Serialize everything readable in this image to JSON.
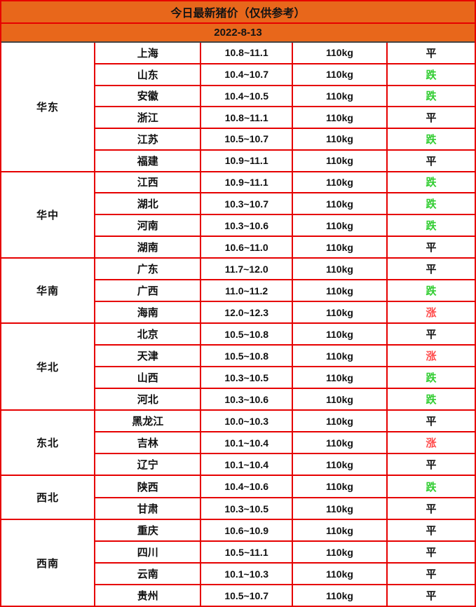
{
  "chart_data": {
    "type": "table",
    "title": "今日最新猪价（仅供参考）",
    "date": "2022-8-13",
    "groups": [
      {
        "region": "华东",
        "rows": [
          {
            "province": "上海",
            "price_range": "10.8~11.1",
            "weight": "110kg",
            "trend": "平"
          },
          {
            "province": "山东",
            "price_range": "10.4~10.7",
            "weight": "110kg",
            "trend": "跌"
          },
          {
            "province": "安徽",
            "price_range": "10.4~10.5",
            "weight": "110kg",
            "trend": "跌"
          },
          {
            "province": "浙江",
            "price_range": "10.8~11.1",
            "weight": "110kg",
            "trend": "平"
          },
          {
            "province": "江苏",
            "price_range": "10.5~10.7",
            "weight": "110kg",
            "trend": "跌"
          },
          {
            "province": "福建",
            "price_range": "10.9~11.1",
            "weight": "110kg",
            "trend": "平"
          }
        ]
      },
      {
        "region": "华中",
        "rows": [
          {
            "province": "江西",
            "price_range": "10.9~11.1",
            "weight": "110kg",
            "trend": "跌"
          },
          {
            "province": "湖北",
            "price_range": "10.3~10.7",
            "weight": "110kg",
            "trend": "跌"
          },
          {
            "province": "河南",
            "price_range": "10.3~10.6",
            "weight": "110kg",
            "trend": "跌"
          },
          {
            "province": "湖南",
            "price_range": "10.6~11.0",
            "weight": "110kg",
            "trend": "平"
          }
        ]
      },
      {
        "region": "华南",
        "rows": [
          {
            "province": "广东",
            "price_range": "11.7~12.0",
            "weight": "110kg",
            "trend": "平"
          },
          {
            "province": "广西",
            "price_range": "11.0~11.2",
            "weight": "110kg",
            "trend": "跌"
          },
          {
            "province": "海南",
            "price_range": "12.0~12.3",
            "weight": "110kg",
            "trend": "涨"
          }
        ]
      },
      {
        "region": "华北",
        "rows": [
          {
            "province": "北京",
            "price_range": "10.5~10.8",
            "weight": "110kg",
            "trend": "平"
          },
          {
            "province": "天津",
            "price_range": "10.5~10.8",
            "weight": "110kg",
            "trend": "涨"
          },
          {
            "province": "山西",
            "price_range": "10.3~10.5",
            "weight": "110kg",
            "trend": "跌"
          },
          {
            "province": "河北",
            "price_range": "10.3~10.6",
            "weight": "110kg",
            "trend": "跌"
          }
        ]
      },
      {
        "region": "东北",
        "rows": [
          {
            "province": "黑龙江",
            "price_range": "10.0~10.3",
            "weight": "110kg",
            "trend": "平"
          },
          {
            "province": "吉林",
            "price_range": "10.1~10.4",
            "weight": "110kg",
            "trend": "涨"
          },
          {
            "province": "辽宁",
            "price_range": "10.1~10.4",
            "weight": "110kg",
            "trend": "平"
          }
        ]
      },
      {
        "region": "西北",
        "rows": [
          {
            "province": "陕西",
            "price_range": "10.4~10.6",
            "weight": "110kg",
            "trend": "跌"
          },
          {
            "province": "甘肃",
            "price_range": "10.3~10.5",
            "weight": "110kg",
            "trend": "平"
          }
        ]
      },
      {
        "region": "西南",
        "rows": [
          {
            "province": "重庆",
            "price_range": "10.6~10.9",
            "weight": "110kg",
            "trend": "平"
          },
          {
            "province": "四川",
            "price_range": "10.5~11.1",
            "weight": "110kg",
            "trend": "平"
          },
          {
            "province": "云南",
            "price_range": "10.1~10.3",
            "weight": "110kg",
            "trend": "平"
          },
          {
            "province": "贵州",
            "price_range": "10.5~10.7",
            "weight": "110kg",
            "trend": "平"
          }
        ]
      }
    ]
  },
  "colors": {
    "orange": "#E8671B",
    "border_red": "#E60000",
    "header_divider_dark": "#444444",
    "trend_down_green": "#32CD32",
    "trend_up_red": "#FF4D4D",
    "text_dark": "#111111"
  }
}
